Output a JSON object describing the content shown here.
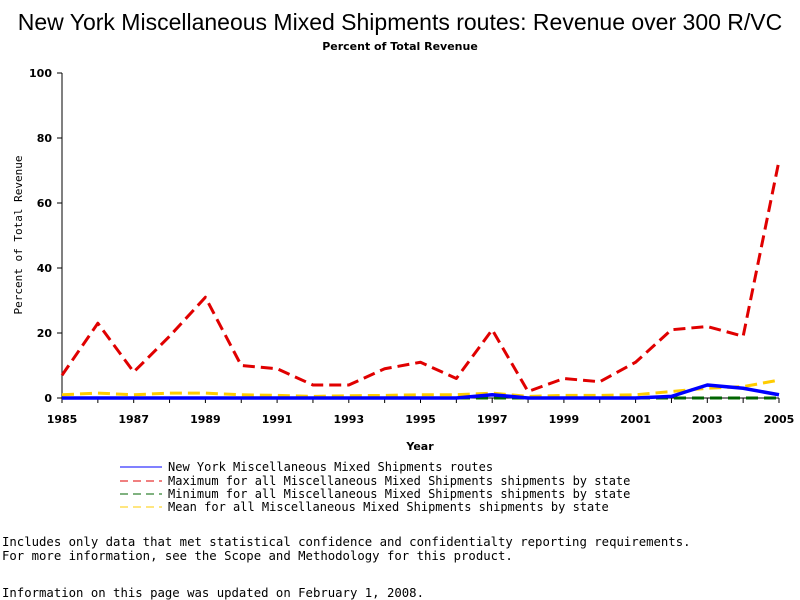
{
  "chart_data": {
    "type": "line",
    "title": "New York Miscellaneous Mixed Shipments routes: Revenue over 300 R/VC",
    "subtitle": "Percent of Total Revenue",
    "xlabel": "Year",
    "ylabel": "Percent of Total Revenue",
    "xlim": [
      1985,
      2005
    ],
    "ylim": [
      0,
      100
    ],
    "x_ticks": [
      "1985",
      "1987",
      "1989",
      "1991",
      "1993",
      "1995",
      "1997",
      "1999",
      "2001",
      "2003",
      "2005"
    ],
    "y_ticks": [
      "0",
      "20",
      "40",
      "60",
      "80",
      "100"
    ],
    "grid": false,
    "legend_position": "bottom",
    "x": [
      1985,
      1986,
      1987,
      1988,
      1989,
      1990,
      1991,
      1992,
      1993,
      1994,
      1995,
      1996,
      1997,
      1998,
      1999,
      2000,
      2001,
      2002,
      2003,
      2004,
      2005
    ],
    "series": [
      {
        "name": "New York Miscellaneous Mixed Shipments routes",
        "color": "#0000ff",
        "style": "solid",
        "values": [
          0,
          0,
          0,
          0,
          0,
          0,
          0,
          0,
          0,
          0,
          0,
          0,
          1,
          0,
          0,
          0,
          0,
          0.5,
          4,
          3,
          1
        ]
      },
      {
        "name": "Maximum for all Miscellaneous Mixed Shipments shipments by state",
        "color": "#e00000",
        "style": "dashed",
        "values": [
          7,
          23,
          8,
          19,
          31,
          10,
          9,
          4,
          4,
          9,
          11,
          6,
          21,
          2,
          6,
          5,
          11,
          21,
          22,
          19,
          73
        ]
      },
      {
        "name": "Minimum for all Miscellaneous Mixed Shipments shipments by state",
        "color": "#006400",
        "style": "dashed",
        "values": [
          0,
          0,
          0,
          0,
          0,
          0,
          0,
          0,
          0,
          0,
          0,
          0,
          0,
          0,
          0,
          0,
          0,
          0,
          0,
          0,
          0
        ]
      },
      {
        "name": "Mean for all Miscellaneous Mixed Shipments shipments by state",
        "color": "#ffcc00",
        "style": "dashed",
        "values": [
          1,
          1.5,
          1,
          1.5,
          1.5,
          1,
          0.8,
          0.5,
          0.7,
          0.8,
          1,
          1,
          1.5,
          0.5,
          0.8,
          0.8,
          1,
          2,
          3,
          3.5,
          5.5
        ]
      }
    ]
  },
  "footnotes": {
    "line1": "Includes only data that met statistical confidence and confidentialty reporting requirements.",
    "line2": "For more information, see the Scope and Methodology for this product.",
    "line3": "Information on this page was updated on February 1, 2008."
  }
}
